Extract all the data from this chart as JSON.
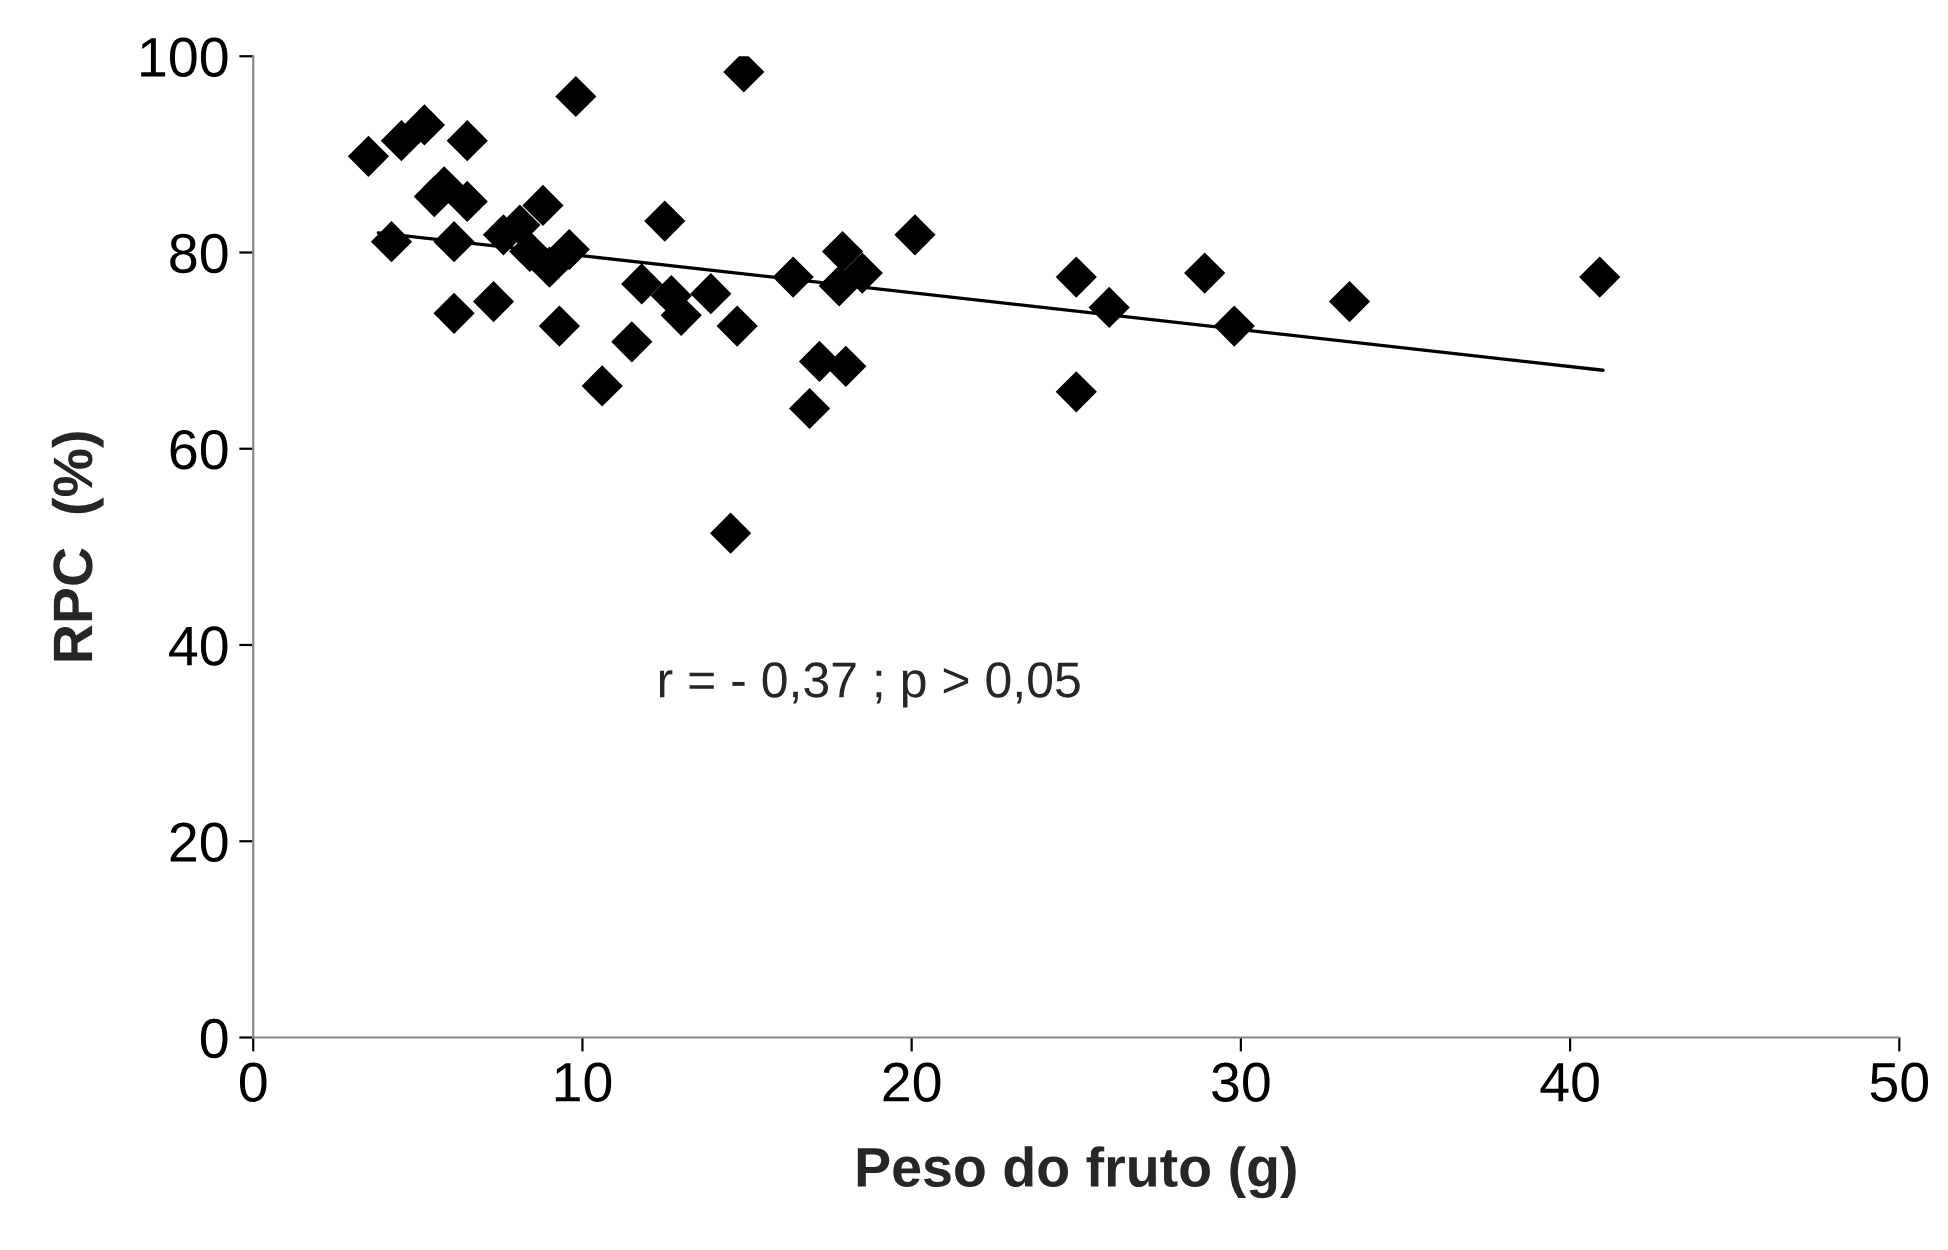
{
  "chart_data": {
    "type": "scatter",
    "xlabel": "Peso do fruto (g)",
    "ylabel": "RPC  (%)",
    "xlim": [
      0,
      50
    ],
    "xticks": [
      0,
      10,
      20,
      30,
      40,
      50
    ],
    "ylim": [
      0,
      100
    ],
    "yticks": [
      0,
      20,
      40,
      60,
      80,
      100
    ],
    "grid": false,
    "legend": false,
    "marker": "diamond",
    "annotations": [
      "r = - 0,37 ; p > 0,05"
    ],
    "series": [
      {
        "color": "#000000",
        "x": [
          3.5,
          4.2,
          4.5,
          5.2,
          5.5,
          5.8,
          6.1,
          6.1,
          6.5,
          6.5,
          7.3,
          7.6,
          8.1,
          8.4,
          8.8,
          9.0,
          9.3,
          9.6,
          9.8,
          10.6,
          11.5,
          11.8,
          12.5,
          12.7,
          13.0,
          13.9,
          14.5,
          14.7,
          14.9,
          16.4,
          16.9,
          17.2,
          17.9,
          17.8,
          18.0,
          18.5,
          20.1,
          25.0,
          25.0,
          26.0,
          28.9,
          29.8,
          33.3,
          40.9
        ],
        "values": [
          89.8,
          81.1,
          91.4,
          93.0,
          85.7,
          86.7,
          81.1,
          73.8,
          91.4,
          85.2,
          75.0,
          81.8,
          82.8,
          80.1,
          84.8,
          78.5,
          72.5,
          80.3,
          95.9,
          66.4,
          70.9,
          76.8,
          83.2,
          75.6,
          73.6,
          75.8,
          51.4,
          72.5,
          98.4,
          77.5,
          64.1,
          68.9,
          80.1,
          76.6,
          68.4,
          77.9,
          81.8,
          77.5,
          65.8,
          74.4,
          77.9,
          72.5,
          75.0,
          77.5
        ]
      },
      {
        "type": "line",
        "color": "#000000",
        "marker": "none",
        "line_style": "solid",
        "x": [
          3.8,
          41.0
        ],
        "values": [
          82.0,
          68.0
        ]
      }
    ]
  }
}
